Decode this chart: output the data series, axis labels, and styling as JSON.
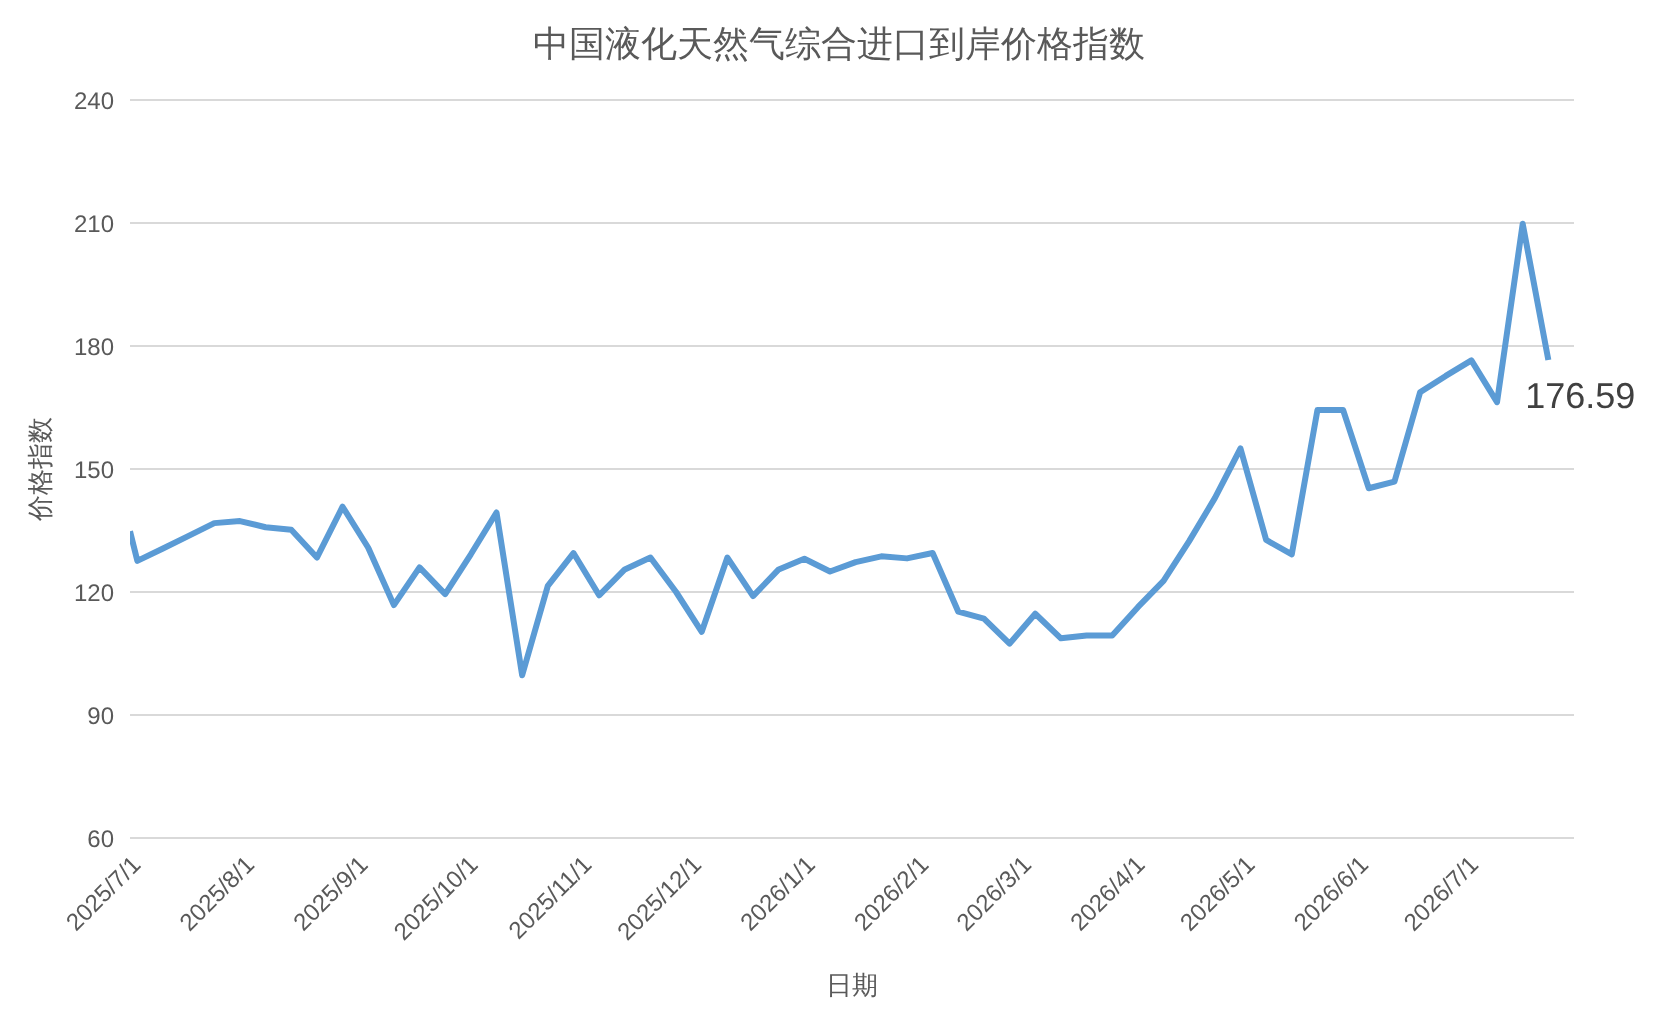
{
  "chart_data": {
    "type": "line",
    "title": "中国液化天然气综合进口到岸价格指数",
    "xlabel": "日期",
    "ylabel": "价格指数",
    "x": [
      "2025-07-01",
      "2025-07-03",
      "2025-07-10",
      "2025-07-17",
      "2025-07-24",
      "2025-07-31",
      "2025-08-07",
      "2025-08-14",
      "2025-08-21",
      "2025-08-28",
      "2025-09-04",
      "2025-09-11",
      "2025-09-18",
      "2025-09-25",
      "2025-10-02",
      "2025-10-09",
      "2025-10-16",
      "2025-10-23",
      "2025-10-30",
      "2025-11-06",
      "2025-11-13",
      "2025-11-20",
      "2025-11-27",
      "2025-12-04",
      "2025-12-11",
      "2025-12-18",
      "2025-12-25",
      "2026-01-01",
      "2026-01-08",
      "2026-01-15",
      "2026-01-22",
      "2026-01-29",
      "2026-02-05",
      "2026-02-12",
      "2026-02-19",
      "2026-02-26",
      "2026-03-05",
      "2026-03-12",
      "2026-03-19",
      "2026-03-26",
      "2026-04-02",
      "2026-04-09",
      "2026-04-16",
      "2026-04-23",
      "2026-04-30",
      "2026-05-07",
      "2026-05-14",
      "2026-05-21",
      "2026-05-28",
      "2026-06-04",
      "2026-06-11",
      "2026-06-18",
      "2026-06-25",
      "2026-07-02",
      "2026-07-09",
      "2026-07-16",
      "2026-07-23"
    ],
    "series": [
      {
        "color": "#5b9bd5",
        "values": [
          134.8,
          127.6,
          130.6,
          133.7,
          136.8,
          137.3,
          135.8,
          135.2,
          128.4,
          140.8,
          130.8,
          116.8,
          126.0,
          119.5,
          129.2,
          139.4,
          99.7,
          121.5,
          129.5,
          119.2,
          125.5,
          128.4,
          120.0,
          110.3,
          128.4,
          119.0,
          125.5,
          128.1,
          125.0,
          127.3,
          128.7,
          128.2,
          129.5,
          115.2,
          113.5,
          107.4,
          114.7,
          108.7,
          109.4,
          109.4,
          116.3,
          122.7,
          132.4,
          142.9,
          155.0,
          132.7,
          129.2,
          164.4,
          164.4,
          145.3,
          146.9,
          168.7,
          172.7,
          176.5,
          166.3,
          209.8,
          176.59
        ]
      }
    ],
    "xlim": [
      "2025-07-01",
      "2026-07-30"
    ],
    "xticks": [
      {
        "value": "2025-07-01",
        "label": "2025/7/1"
      },
      {
        "value": "2025-08-01",
        "label": "2025/8/1"
      },
      {
        "value": "2025-09-01",
        "label": "2025/9/1"
      },
      {
        "value": "2025-10-01",
        "label": "2025/10/1"
      },
      {
        "value": "2025-11-01",
        "label": "2025/11/1"
      },
      {
        "value": "2025-12-01",
        "label": "2025/12/1"
      },
      {
        "value": "2026-01-01",
        "label": "2026/1/1"
      },
      {
        "value": "2026-02-01",
        "label": "2026/2/1"
      },
      {
        "value": "2026-03-01",
        "label": "2026/3/1"
      },
      {
        "value": "2026-04-01",
        "label": "2026/4/1"
      },
      {
        "value": "2026-05-01",
        "label": "2026/5/1"
      },
      {
        "value": "2026-06-01",
        "label": "2026/6/1"
      },
      {
        "value": "2026-07-01",
        "label": "2026/7/1"
      }
    ],
    "ylim": [
      60,
      240
    ],
    "yticks": [
      60,
      90,
      120,
      150,
      180,
      210,
      240
    ],
    "grid": "y",
    "marker": "none",
    "line_style": "solid",
    "legend": false,
    "annotations": [
      {
        "text": "176.59",
        "x": "2026-07-23",
        "y": 176.59
      }
    ]
  }
}
